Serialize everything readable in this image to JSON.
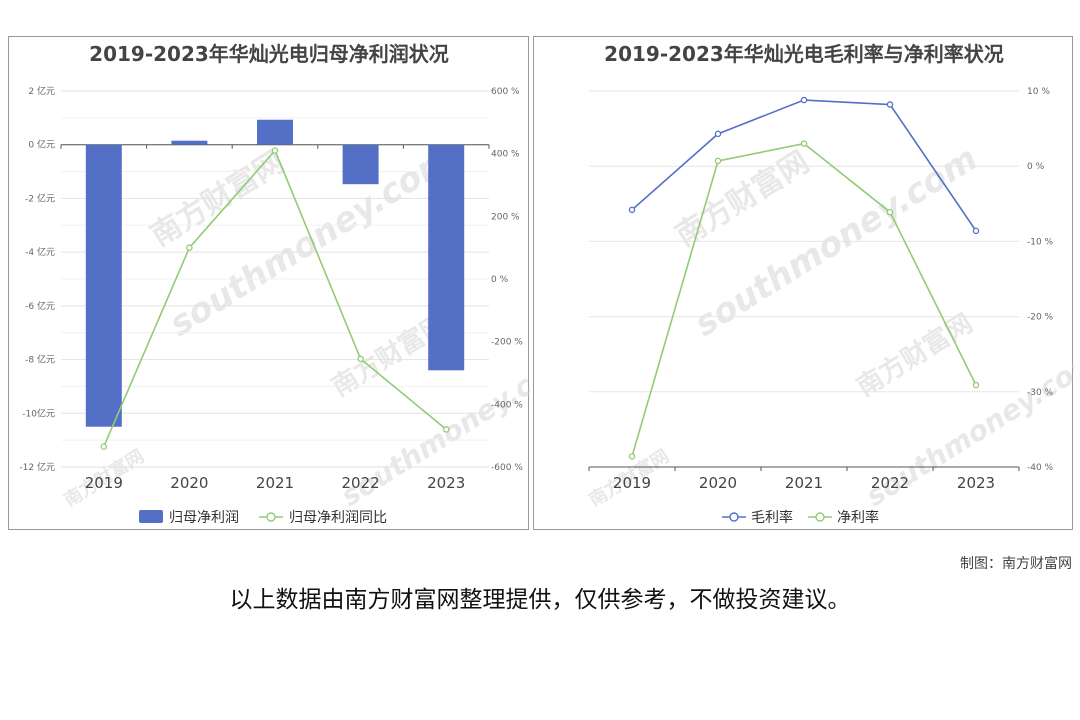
{
  "chart_data": [
    {
      "type": "bar+line",
      "title": "2019-2023年华灿光电归母净利润状况",
      "categories": [
        "2019",
        "2020",
        "2021",
        "2022",
        "2023"
      ],
      "left_axis": {
        "ticks": [
          "2 亿元",
          "0 亿元",
          "-2 亿元",
          "-4 亿元",
          "-6 亿元",
          "-8 亿元",
          "-10亿元",
          "-12 亿元"
        ],
        "range": [
          -12,
          2
        ],
        "unit": "亿元"
      },
      "right_axis": {
        "ticks": [
          "600 %",
          "400 %",
          "200 %",
          "0 %",
          "-200 %",
          "-400 %",
          "-600 %"
        ],
        "range": [
          -600,
          600
        ],
        "unit": "%"
      },
      "series": [
        {
          "name": "归母净利润",
          "type": "bar",
          "axis": "left",
          "color": "#5470c6",
          "values": [
            -10.5,
            0.15,
            0.93,
            -1.47,
            -8.4
          ]
        },
        {
          "name": "归母净利润同比",
          "type": "line",
          "axis": "right",
          "color": "#91cc75",
          "values": [
            -535,
            100,
            410,
            -255,
            -480
          ]
        }
      ],
      "grid": true,
      "legend_position": "bottom"
    },
    {
      "type": "line",
      "title": "2019-2023年华灿光电毛利率与净利率状况",
      "categories": [
        "2019",
        "2020",
        "2021",
        "2022",
        "2023"
      ],
      "right_axis": {
        "ticks": [
          "10 %",
          "0 %",
          "-10 %",
          "-20 %",
          "-30 %",
          "-40 %"
        ],
        "range": [
          -40,
          10
        ],
        "unit": "%"
      },
      "series": [
        {
          "name": "毛利率",
          "color": "#5470c6",
          "values": [
            -5.8,
            4.3,
            8.8,
            8.2,
            -8.6
          ]
        },
        {
          "name": "净利率",
          "color": "#91cc75",
          "values": [
            -38.6,
            0.7,
            3.0,
            -6.1,
            -29.1
          ]
        }
      ],
      "grid": true,
      "legend_position": "bottom"
    }
  ],
  "watermark": {
    "brand": "南方财富网",
    "domain": "southmoney.com"
  },
  "credit": "制图：南方财富网",
  "disclaimer": "以上数据由南方财富网整理提供，仅供参考，不做投资建议。"
}
